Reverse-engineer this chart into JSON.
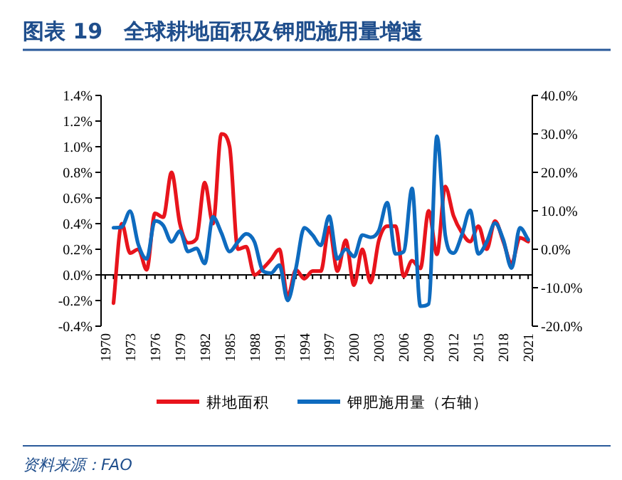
{
  "chart_data": {
    "type": "line",
    "title": "图表 19　全球耕地面积及钾肥施用量增速",
    "annotations": [
      "资料来源：FAO"
    ],
    "x": [
      1971,
      1972,
      1973,
      1974,
      1975,
      1976,
      1977,
      1978,
      1979,
      1980,
      1981,
      1982,
      1983,
      1984,
      1985,
      1986,
      1987,
      1988,
      1989,
      1990,
      1991,
      1992,
      1993,
      1994,
      1995,
      1996,
      1997,
      1998,
      1999,
      2000,
      2001,
      2002,
      2003,
      2004,
      2005,
      2006,
      2007,
      2008,
      2009,
      2010,
      2011,
      2012,
      2013,
      2014,
      2015,
      2016,
      2017,
      2018,
      2019,
      2020,
      2021
    ],
    "series": [
      {
        "name": "耕地面积",
        "color": "#e8141c",
        "values": [
          -0.22,
          0.4,
          0.17,
          0.2,
          0.04,
          0.48,
          0.45,
          0.8,
          0.4,
          0.25,
          0.28,
          0.72,
          0.4,
          1.1,
          1.0,
          0.2,
          0.22,
          0.0,
          0.05,
          0.12,
          0.2,
          -0.17,
          0.04,
          -0.03,
          0.03,
          0.03,
          0.37,
          0.03,
          0.27,
          -0.08,
          0.2,
          -0.06,
          0.27,
          0.38,
          0.38,
          -0.01,
          0.11,
          0.05,
          0.5,
          0.16,
          0.69,
          0.46,
          0.33,
          0.26,
          0.38,
          0.2,
          0.42,
          0.26,
          0.09,
          0.29,
          0.26
        ]
      },
      {
        "name": "钾肥施用量（右轴）",
        "color": "#0e6bbf",
        "axis": "y2",
        "values": [
          5.6,
          5.8,
          9.9,
          1.2,
          -2.5,
          7.4,
          6.2,
          1.9,
          4.7,
          -0.6,
          0.2,
          -3.7,
          8.4,
          4.3,
          -0.6,
          1.9,
          4.0,
          1.9,
          -5.6,
          -6.2,
          -4.1,
          -13.3,
          -4.9,
          5.6,
          3.7,
          1.0,
          8.6,
          -2.5,
          0.0,
          -1.9,
          3.7,
          3.1,
          4.9,
          12.1,
          -1.2,
          -0.6,
          15.8,
          -14.8,
          -14.2,
          29.4,
          3.7,
          -1.0,
          3.7,
          10.1,
          -1.2,
          1.9,
          6.8,
          2.5,
          -4.9,
          5.6,
          2.5
        ]
      }
    ],
    "xlim": [
      1969.5,
      2021.5
    ],
    "xticks": [
      1970,
      1973,
      1976,
      1979,
      1982,
      1985,
      1988,
      1991,
      1994,
      1997,
      2000,
      2003,
      2006,
      2009,
      2012,
      2015,
      2018,
      2021
    ],
    "ylim": [
      -0.4,
      1.4
    ],
    "yticks": [
      {
        "value": -0.4,
        "label": "-0.4%"
      },
      {
        "value": -0.2,
        "label": "-0.2%"
      },
      {
        "value": 0,
        "label": "0.0%"
      },
      {
        "value": 0.2,
        "label": "0.2%"
      },
      {
        "value": 0.4,
        "label": "0.4%"
      },
      {
        "value": 0.6,
        "label": "0.6%"
      },
      {
        "value": 0.8,
        "label": "0.8%"
      },
      {
        "value": 1.0,
        "label": "1.0%"
      },
      {
        "value": 1.2,
        "label": "1.2%"
      },
      {
        "value": 1.4,
        "label": "1.4%"
      }
    ],
    "y2lim": [
      -20,
      40
    ],
    "y2ticks": [
      {
        "value": -20,
        "label": "-20.0%"
      },
      {
        "value": -10,
        "label": "-10.0%"
      },
      {
        "value": 0,
        "label": "0.0%"
      },
      {
        "value": 10,
        "label": "10.0%"
      },
      {
        "value": 20,
        "label": "20.0%"
      },
      {
        "value": 30,
        "label": "30.0%"
      },
      {
        "value": 40,
        "label": "40.0%"
      }
    ],
    "ref_lines": [
      {
        "axis": "y",
        "value": 0,
        "color": "#000000",
        "line_style": "solid"
      }
    ],
    "legend": "bottom",
    "grid": false,
    "marker": "none",
    "line_style": "solid"
  }
}
